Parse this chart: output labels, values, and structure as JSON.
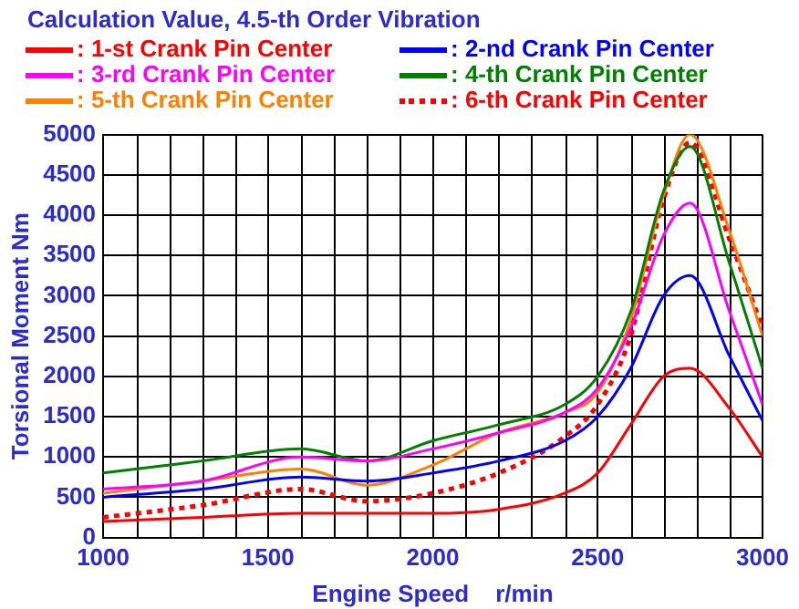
{
  "chart_data": {
    "type": "line",
    "title": "Calculation Value, 4.5-th Order Vibration",
    "xlabel": "Engine Speed    r/min",
    "ylabel": "Torsional Moment Nm",
    "x": [
      1000,
      1300,
      1600,
      1800,
      2000,
      2200,
      2400,
      2500,
      2600,
      2700,
      2780,
      2900,
      3000
    ],
    "series": [
      {
        "name": ": 1-st Crank Pin Center",
        "color": "#ff0000",
        "values": [
          200,
          250,
          300,
          300,
          300,
          350,
          550,
          800,
          1400,
          2000,
          2100,
          1600,
          1000
        ]
      },
      {
        "name": ": 2-nd Crank Pin Center",
        "color": "#0000ff",
        "values": [
          500,
          600,
          750,
          700,
          800,
          950,
          1200,
          1500,
          2100,
          3000,
          3250,
          2250,
          1450
        ]
      },
      {
        "name": ": 3-rd Crank Pin Center",
        "color": "#ff00ff",
        "values": [
          600,
          700,
          1000,
          950,
          1100,
          1300,
          1550,
          1850,
          2600,
          3750,
          4150,
          2800,
          1650
        ]
      },
      {
        "name": ": 4-th Crank Pin Center",
        "color": "#008000",
        "values": [
          800,
          950,
          1100,
          950,
          1200,
          1400,
          1650,
          2000,
          2800,
          4300,
          4850,
          3400,
          2100
        ]
      },
      {
        "name": ": 5-th Crank Pin Center",
        "color": "#ff8000",
        "values": [
          550,
          700,
          850,
          650,
          900,
          1300,
          1550,
          1800,
          2700,
          4250,
          5000,
          3800,
          2500
        ]
      },
      {
        "name": ": 6-th Crank Pin Center",
        "color": "#ff0000",
        "line_style": "dotted",
        "values": [
          250,
          400,
          600,
          450,
          550,
          800,
          1250,
          1650,
          2500,
          4200,
          4900,
          3700,
          2600
        ]
      }
    ],
    "xlim": [
      1000,
      3000
    ],
    "xticks": [
      1000,
      1500,
      2000,
      2500,
      3000
    ],
    "ylim": [
      0,
      5000
    ],
    "yticks": [
      0,
      500,
      1000,
      1500,
      2000,
      2500,
      3000,
      3500,
      4000,
      4500,
      5000
    ],
    "grid": true,
    "legend": "top",
    "marker": "none"
  }
}
